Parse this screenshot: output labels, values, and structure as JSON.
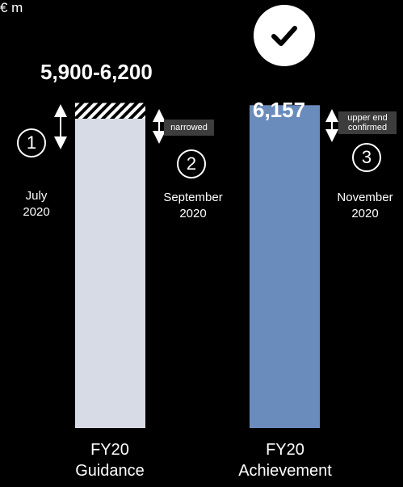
{
  "chart_data": {
    "type": "bar",
    "unit": "€ m",
    "categories": [
      "FY20 Guidance",
      "FY20 Achievement"
    ],
    "category_lines": [
      [
        "FY20",
        "Guidance"
      ],
      [
        "FY20",
        "Achievement"
      ]
    ],
    "series": [
      {
        "values": [
          5900,
          6157
        ],
        "colors": [
          "#d7dbe6",
          "#6a8cbc"
        ]
      }
    ],
    "guidance_range": [
      5900,
      6200
    ],
    "value_labels": [
      "5,900-6,200",
      "6,157"
    ],
    "ylim": [
      0,
      6500
    ]
  },
  "milestones": [
    {
      "number": "1",
      "date_lines": [
        "July",
        "2020"
      ]
    },
    {
      "number": "2",
      "date_lines": [
        "September",
        "2020"
      ],
      "tag": "narrowed"
    },
    {
      "number": "3",
      "date_lines": [
        "November",
        "2020"
      ],
      "tag_lines": [
        "upper end",
        "confirmed"
      ]
    }
  ],
  "icons": {
    "achievement": "checkmark-icon"
  }
}
